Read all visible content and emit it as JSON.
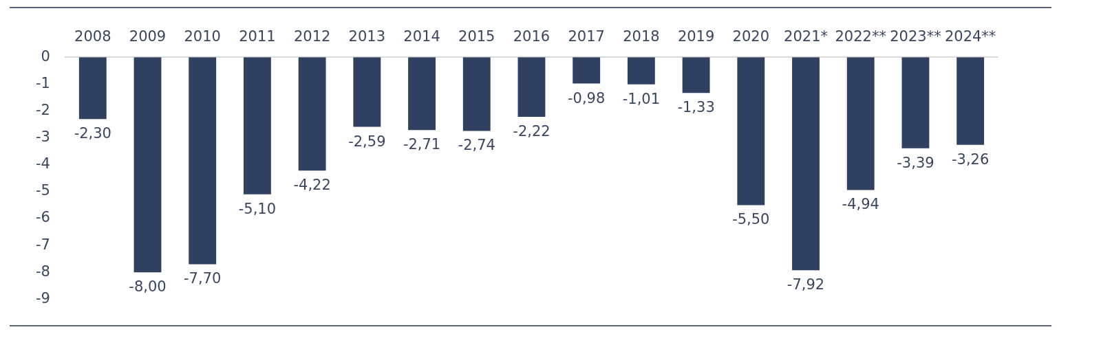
{
  "chart_data": {
    "type": "bar",
    "categories": [
      "2008",
      "2009",
      "2010",
      "2011",
      "2012",
      "2013",
      "2014",
      "2015",
      "2016",
      "2017",
      "2018",
      "2019",
      "2020",
      "2021*",
      "2022**",
      "2023**",
      "2024**"
    ],
    "values": [
      -2.3,
      -8.0,
      -7.7,
      -5.1,
      -4.22,
      -2.59,
      -2.71,
      -2.74,
      -2.22,
      -0.98,
      -1.01,
      -1.33,
      -5.5,
      -7.92,
      -4.94,
      -3.39,
      -3.26
    ],
    "value_labels": [
      "-2,30",
      "-8,00",
      "-7,70",
      "-5,10",
      "-4,22",
      "-2,59",
      "-2,71",
      "-2,74",
      "-2,22",
      "-0,98",
      "-1,01",
      "-1,33",
      "-5,50",
      "-7,92",
      "-4,94",
      "-3,39",
      "-3,26"
    ],
    "color": "#2f4060",
    "ylim": [
      -9,
      0
    ],
    "yticks": [
      -9,
      -8,
      -7,
      -6,
      -5,
      -4,
      -3,
      -2,
      -1,
      0
    ],
    "grid": false,
    "data_labels": true
  }
}
